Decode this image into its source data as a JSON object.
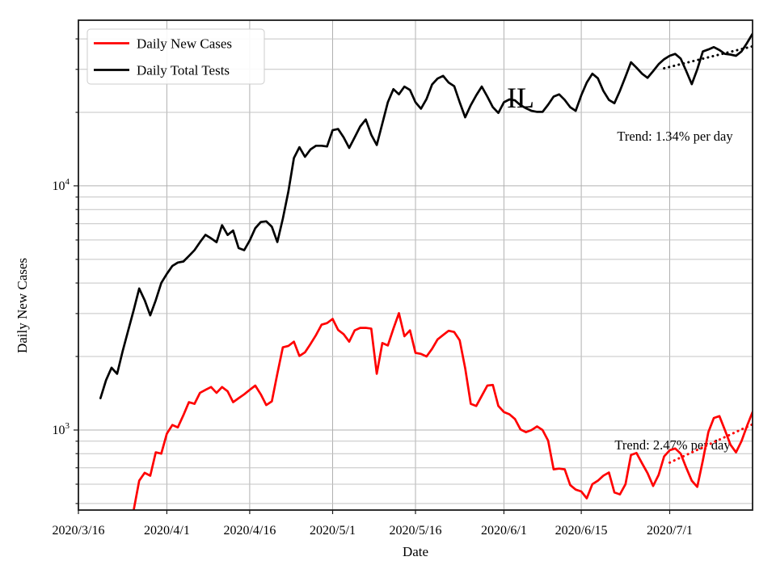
{
  "page": {
    "background": "#ffffff"
  },
  "chart_data": {
    "type": "line",
    "title": "",
    "xlabel": "Date",
    "ylabel": "Daily New Cases",
    "xscale": "date",
    "yscale": "log",
    "ylim": [
      470,
      47700
    ],
    "x_days_range": [
      0,
      122
    ],
    "grid": {
      "show": true,
      "color": "#c4c4c4"
    },
    "x_ticks": [
      {
        "day": 0,
        "label": "2020/3/16"
      },
      {
        "day": 16,
        "label": "2020/4/1"
      },
      {
        "day": 31,
        "label": "2020/4/16"
      },
      {
        "day": 46,
        "label": "2020/5/1"
      },
      {
        "day": 61,
        "label": "2020/5/16"
      },
      {
        "day": 77,
        "label": "2020/6/1"
      },
      {
        "day": 91,
        "label": "2020/6/15"
      },
      {
        "day": 107,
        "label": "2020/7/1"
      }
    ],
    "y_ticks": [
      {
        "value": 1000,
        "base": "10",
        "exp": "3"
      },
      {
        "value": 10000,
        "base": "10",
        "exp": "4"
      }
    ],
    "legend": {
      "position": "upper-left",
      "entries": [
        {
          "label": "Daily New Cases",
          "color": "#ff0000"
        },
        {
          "label": "Daily Total Tests",
          "color": "#000000"
        }
      ]
    },
    "annotations": [
      {
        "id": "state-label",
        "text": "IL",
        "x_day": 80,
        "value": 21000
      },
      {
        "id": "tests-trend-label",
        "text": "Trend: 1.34% per day",
        "x_day": 108,
        "value": 15300
      },
      {
        "id": "cases-trend-label",
        "text": "Trend: 2.47% per day",
        "x_day": 107.5,
        "value": 830
      }
    ],
    "series": [
      {
        "name": "Daily New Cases",
        "color": "#ff0000",
        "start_day": 10,
        "values": [
          470,
          620,
          668,
          650,
          810,
          800,
          966,
          1048,
          1025,
          1150,
          1300,
          1280,
          1420,
          1460,
          1500,
          1420,
          1500,
          1440,
          1300,
          1350,
          1400,
          1460,
          1520,
          1400,
          1265,
          1310,
          1700,
          2180,
          2210,
          2300,
          2010,
          2080,
          2250,
          2450,
          2700,
          2740,
          2850,
          2570,
          2470,
          2300,
          2560,
          2620,
          2620,
          2600,
          1700,
          2270,
          2220,
          2600,
          3010,
          2420,
          2560,
          2070,
          2050,
          2000,
          2150,
          2350,
          2450,
          2550,
          2520,
          2330,
          1790,
          1280,
          1255,
          1380,
          1520,
          1530,
          1255,
          1185,
          1160,
          1110,
          1005,
          980,
          1000,
          1035,
          1000,
          905,
          690,
          695,
          690,
          595,
          570,
          560,
          525,
          600,
          620,
          650,
          670,
          555,
          545,
          600,
          790,
          805,
          730,
          666,
          590,
          655,
          780,
          826,
          840,
          800,
          700,
          620,
          585,
          750,
          980,
          1120,
          1140,
          1000,
          870,
          810,
          900,
          1040,
          1185
        ]
      },
      {
        "name": "Daily Total Tests",
        "color": "#000000",
        "start_day": 4,
        "values": [
          1350,
          1600,
          1800,
          1700,
          2100,
          2550,
          3100,
          3800,
          3400,
          2950,
          3400,
          4000,
          4360,
          4700,
          4850,
          4900,
          5160,
          5450,
          5880,
          6300,
          6100,
          5880,
          6900,
          6290,
          6560,
          5560,
          5450,
          5970,
          6710,
          7110,
          7160,
          6800,
          5890,
          7340,
          9500,
          13000,
          14400,
          13150,
          14100,
          14600,
          14600,
          14500,
          16900,
          17100,
          15800,
          14300,
          15800,
          17500,
          18700,
          16200,
          14700,
          18000,
          22000,
          24900,
          23700,
          25500,
          24700,
          22000,
          20700,
          22700,
          26000,
          27500,
          28200,
          26500,
          25600,
          22000,
          19100,
          21400,
          23500,
          25500,
          23200,
          21000,
          19900,
          22000,
          22600,
          22400,
          21400,
          20800,
          20300,
          20100,
          20100,
          21500,
          23200,
          23700,
          22500,
          21000,
          20300,
          23500,
          26500,
          28800,
          27600,
          24500,
          22500,
          21800,
          24500,
          28000,
          32100,
          30500,
          28800,
          27700,
          29500,
          31500,
          33000,
          34100,
          34700,
          33200,
          29500,
          26100,
          30000,
          35500,
          36200,
          37000,
          36000,
          34700,
          34500,
          34100,
          35500,
          38500,
          42000
        ]
      }
    ],
    "trend_lines": [
      {
        "series": "Daily Total Tests",
        "label": "Trend: 1.34% per day",
        "color": "#000000",
        "from": {
          "day": 106,
          "value": 30300
        },
        "to": {
          "day": 122,
          "value": 37300
        }
      },
      {
        "series": "Daily New Cases",
        "label": "Trend: 2.47% per day",
        "color": "#ff0000",
        "from": {
          "day": 107,
          "value": 735
        },
        "to": {
          "day": 122,
          "value": 1055
        }
      }
    ]
  }
}
